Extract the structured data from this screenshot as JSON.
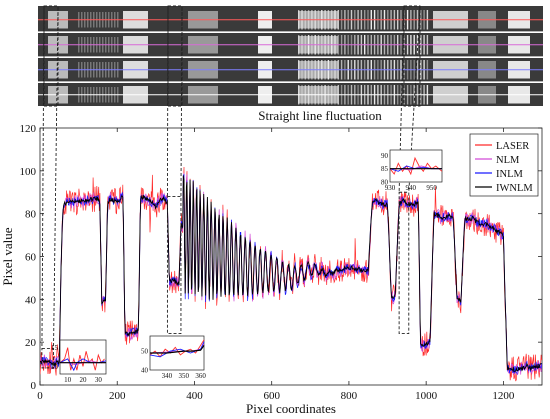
{
  "figure": {
    "strip_title": "Straight line fluctuation",
    "strip_image": "grayscale resolution test-chart strips with horizontal scan lines"
  },
  "chart_data": {
    "type": "line",
    "title": "",
    "xlabel": "Pixel coordinates",
    "ylabel": "Pixel value",
    "xlim": [
      0,
      1300
    ],
    "ylim": [
      0,
      120
    ],
    "xticks": [
      0,
      200,
      400,
      600,
      800,
      1000,
      1200
    ],
    "yticks": [
      0,
      20,
      40,
      60,
      80,
      100,
      120
    ],
    "grid": false,
    "legend_position": "top-right",
    "series": [
      {
        "name": "LASER",
        "color": "#ff2a2a"
      },
      {
        "name": "NLM",
        "color": "#d24ad8"
      },
      {
        "name": "INLM",
        "color": "#1a1aff"
      },
      {
        "name": "IWNLM",
        "color": "#000000"
      }
    ],
    "profile": {
      "x": [
        0,
        25,
        28,
        40,
        50,
        55,
        60,
        70,
        150,
        155,
        160,
        170,
        175,
        180,
        190,
        200,
        215,
        220,
        230,
        250,
        255,
        260,
        270,
        280,
        290,
        300,
        310,
        320,
        330,
        335,
        345,
        360,
        365,
        380,
        400,
        450,
        500,
        550,
        600,
        650,
        700,
        750,
        800,
        850,
        860,
        870,
        890,
        900,
        910,
        920,
        930,
        940,
        960,
        980,
        985,
        990,
        1000,
        1010,
        1020,
        1030,
        1040,
        1070,
        1080,
        1090,
        1100,
        1110,
        1120,
        1130,
        1160,
        1200,
        1210,
        1220,
        1230,
        1250,
        1260,
        1270,
        1290
      ],
      "y": [
        11,
        11,
        10,
        10,
        11,
        60,
        84,
        85,
        87,
        86,
        38,
        40,
        85,
        87,
        86,
        86,
        88,
        25,
        24,
        25,
        25,
        87,
        88,
        86,
        85,
        83,
        86,
        87,
        85,
        48,
        49,
        47,
        75,
        70,
        68,
        62,
        58,
        54,
        52,
        50,
        54,
        52,
        55,
        53,
        85,
        86,
        84,
        85,
        40,
        42,
        85,
        86,
        84,
        85,
        20,
        18,
        19,
        20,
        80,
        79,
        78,
        79,
        40,
        39,
        78,
        77,
        78,
        76,
        75,
        70,
        7,
        8,
        7,
        8,
        9,
        8,
        9
      ]
    },
    "oscillation_region": {
      "x_start": 370,
      "x_end": 800
    },
    "insets": [
      {
        "id": "inset1",
        "source_x": [
          5,
          35
        ],
        "source_y": [
          5,
          18
        ],
        "xlim": [
          5,
          35
        ],
        "ylim": [
          8,
          17
        ],
        "xticks": [
          10,
          20,
          30
        ],
        "yticks": [
          10,
          15
        ],
        "lines": [
          {
            "series": "LASER",
            "x": [
              5,
              8,
              10,
              12,
              14,
              16,
              18,
              20,
              22,
              24,
              26,
              28,
              30,
              32,
              34
            ],
            "y": [
              11,
              12,
              15,
              9,
              12,
              9,
              13,
              10,
              14,
              11,
              12,
              9,
              13,
              11,
              12
            ]
          },
          {
            "series": "NLM",
            "x": [
              5,
              10,
              15,
              20,
              25,
              30,
              35
            ],
            "y": [
              11,
              11,
              10.5,
              11,
              11.5,
              11,
              11
            ]
          },
          {
            "series": "INLM",
            "x": [
              5,
              10,
              14,
              16,
              20,
              25,
              30,
              35
            ],
            "y": [
              11,
              12,
              9,
              11,
              12,
              11,
              11,
              11.5
            ]
          },
          {
            "series": "IWNLM",
            "x": [
              5,
              10,
              15,
              20,
              25,
              30,
              35
            ],
            "y": [
              11,
              11,
              11,
              11,
              11,
              11,
              11
            ]
          }
        ]
      },
      {
        "id": "inset2",
        "source_x": [
          330,
          365
        ],
        "source_y": [
          24,
          88
        ],
        "xlim": [
          330,
          362
        ],
        "ylim": [
          40,
          58
        ],
        "xticks": [
          340,
          350,
          360
        ],
        "yticks": [
          40,
          50
        ],
        "lines": [
          {
            "series": "LASER",
            "x": [
              330,
              333,
              336,
              339,
              342,
              345,
              348,
              351,
              354,
              357,
              360,
              362
            ],
            "y": [
              48,
              50,
              47,
              51,
              49,
              52,
              48,
              50,
              51,
              49,
              53,
              56
            ]
          },
          {
            "series": "NLM",
            "x": [
              330,
              340,
              350,
              355,
              360,
              362
            ],
            "y": [
              49,
              49.5,
              50,
              50,
              51,
              54
            ]
          },
          {
            "series": "INLM",
            "x": [
              330,
              336,
              342,
              348,
              354,
              360,
              362
            ],
            "y": [
              48,
              47,
              50,
              51,
              49,
              51,
              55
            ]
          },
          {
            "series": "IWNLM",
            "x": [
              330,
              340,
              350,
              355,
              360,
              362
            ],
            "y": [
              49,
              49,
              50,
              50,
              50.5,
              53
            ]
          }
        ]
      },
      {
        "id": "inset3",
        "source_x": [
          930,
          955
        ],
        "source_y": [
          24,
          90
        ],
        "xlim": [
          930,
          955
        ],
        "ylim": [
          80,
          92
        ],
        "xticks": [
          930,
          940,
          950
        ],
        "yticks": [
          80,
          85,
          90
        ],
        "lines": [
          {
            "series": "LASER",
            "x": [
              930,
              932,
              934,
              936,
              938,
              940,
              942,
              944,
              946,
              948,
              950,
              952,
              955
            ],
            "y": [
              85,
              83,
              87,
              84,
              86,
              83,
              89,
              86,
              84,
              87,
              85,
              86,
              84
            ]
          },
          {
            "series": "NLM",
            "x": [
              930,
              935,
              940,
              945,
              950,
              955
            ],
            "y": [
              85,
              85,
              84.5,
              86,
              85,
              85
            ]
          },
          {
            "series": "INLM",
            "x": [
              930,
              934,
              938,
              942,
              946,
              950,
              955
            ],
            "y": [
              85,
              84,
              86,
              85,
              85.5,
              85,
              85
            ]
          },
          {
            "series": "IWNLM",
            "x": [
              930,
              935,
              940,
              945,
              950,
              955
            ],
            "y": [
              85,
              85,
              85,
              85,
              85,
              85
            ]
          }
        ]
      }
    ]
  }
}
